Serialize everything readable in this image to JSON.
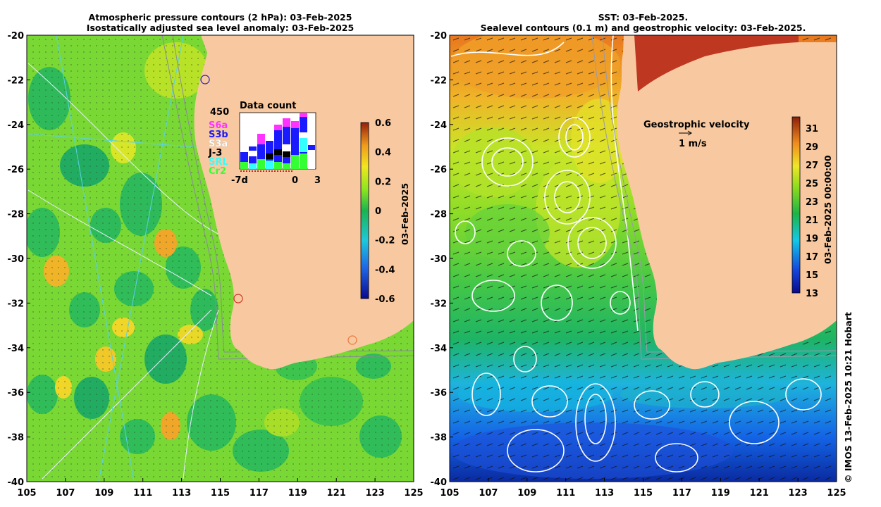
{
  "left_panel": {
    "title_line1": "Atmospheric pressure contours (2 hPa): 03-Feb-2025",
    "title_line2": "Isostatically adjusted sea level anomaly: 03-Feb-2025",
    "colorbar": {
      "label": "03-Feb-2025",
      "ticks": [
        "0.6",
        "0.4",
        "0.2",
        "0",
        "-0.2",
        "-0.4",
        "-0.6"
      ]
    },
    "data_count": {
      "title": "Data count",
      "max_label": "450",
      "x_labels": [
        "-7d",
        "0",
        "3"
      ],
      "missions": [
        {
          "name": "S6a",
          "color": "#ff33ff"
        },
        {
          "name": "S3b",
          "color": "#1a1aff"
        },
        {
          "name": "S3a",
          "color": "#ffffff"
        },
        {
          "name": "J-3",
          "color": "#000000"
        },
        {
          "name": "SRL",
          "color": "#33ffff"
        },
        {
          "name": "Cr2",
          "color": "#33ff33"
        }
      ]
    }
  },
  "right_panel": {
    "title_line1": "SST: 03-Feb-2025.",
    "title_line2": "Sealevel contours (0.1 m) and geostrophic velocity: 03-Feb-2025.",
    "velocity_legend": {
      "title": "Geostrophic velocity",
      "scale": "1 m/s"
    },
    "colorbar": {
      "label": "03-Feb-2025 00:00:00",
      "ticks": [
        "31",
        "29",
        "27",
        "25",
        "23",
        "21",
        "19",
        "17",
        "15",
        "13"
      ]
    }
  },
  "axes": {
    "y_ticks": [
      "-20",
      "-22",
      "-24",
      "-26",
      "-28",
      "-30",
      "-32",
      "-34",
      "-36",
      "-38",
      "-40"
    ],
    "x_ticks": [
      "105",
      "107",
      "109",
      "111",
      "113",
      "115",
      "117",
      "119",
      "121",
      "123",
      "125"
    ]
  },
  "credit": "© IMOS 13-Feb-2025 10:21 Hobart"
}
